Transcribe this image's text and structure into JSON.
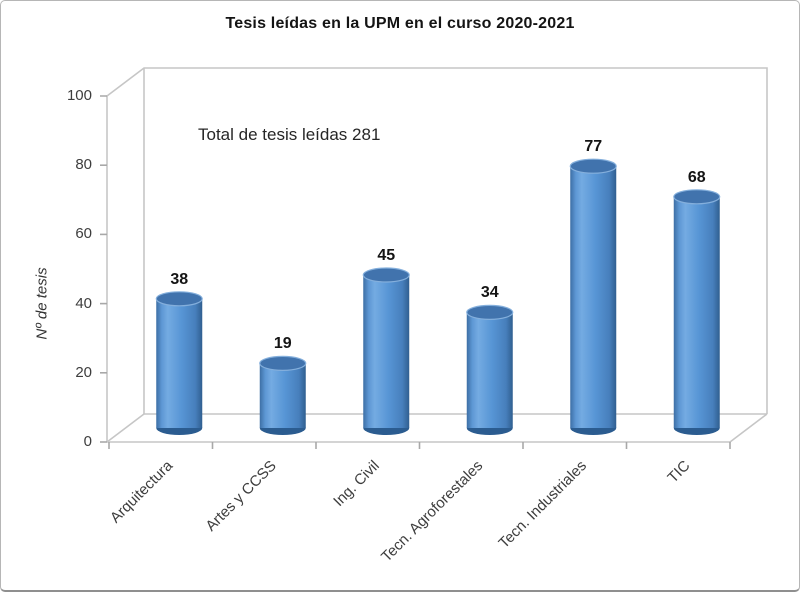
{
  "window": {
    "background": "#ffffff",
    "border_color": "#b6b6b6"
  },
  "chart_data": {
    "type": "bar",
    "subtype": "3d-cylinder",
    "title": "Tesis leídas en la UPM en el curso 2020-2021",
    "annotation": "Total de tesis leídas 281",
    "categories": [
      "Arquitectura",
      "Artes y CCSS",
      "Ing. Civil",
      "Tecn. Agroforestales",
      "Tecn. Industriales",
      "TIC"
    ],
    "values": [
      38,
      19,
      45,
      34,
      77,
      68
    ],
    "data_labels": [
      "38",
      "19",
      "45",
      "34",
      "77",
      "68"
    ],
    "total": 281,
    "xlabel": "",
    "ylabel": "Nº de tesis",
    "ylim": [
      0,
      100
    ],
    "yticks": [
      0,
      20,
      40,
      60,
      80,
      100
    ],
    "grid": false,
    "legend": false,
    "bar_color": "#4f8fce",
    "bar_top_color": "#4173ad",
    "bar_bottom_color": "#2b5c90",
    "wall_line_color": "#c6c6c6",
    "tick_color": "#a8a8a8"
  }
}
